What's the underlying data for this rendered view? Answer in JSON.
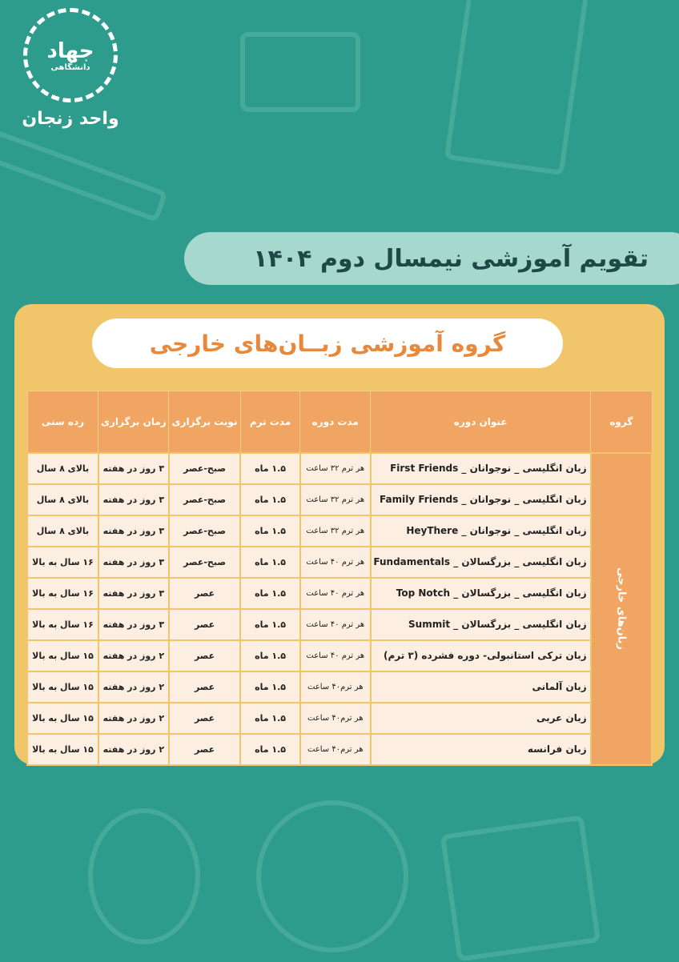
{
  "logo": {
    "name": "جهاد",
    "subtitle": "دانشگاهی",
    "unit": "واحد زنجان"
  },
  "title": "تقویم آموزشی نیمسال دوم ۱۴۰۴",
  "subtitle": "گروه آموزشی زبــان‌های خارجی",
  "table": {
    "headers": [
      "گروه",
      "عنوان دوره",
      "مدت دوره",
      "مدت ترم",
      "نوبت برگزاری",
      "زمان برگزاری",
      "رده سنی"
    ],
    "group": "زبان‌های خارجی",
    "rows": [
      [
        "زبان انگلیسی _ نوجوانان _ First Friends",
        "هر ترم ۳۲ ساعت",
        "۱.۵ ماه",
        "صبح-عصر",
        "۳ روز در هفته",
        "بالای ۸ سال"
      ],
      [
        "زبان انگلیسی _ نوجوانان _ Family Friends",
        "هر ترم ۳۲ ساعت",
        "۱.۵ ماه",
        "صبح-عصر",
        "۳ روز در هفته",
        "بالای ۸ سال"
      ],
      [
        "زبان انگلیسی _ نوجوانان _ HeyThere",
        "هر ترم ۳۲ ساعت",
        "۱.۵ ماه",
        "صبح-عصر",
        "۳ روز در هفته",
        "بالای ۸ سال"
      ],
      [
        "زبان انگلیسی _ بزرگسالان _ Fundamentals",
        "هر ترم ۴۰ ساعت",
        "۱.۵ ماه",
        "صبح-عصر",
        "۳ روز در هفته",
        "۱۶ سال به بالا"
      ],
      [
        "زبان انگلیسی _ بزرگسالان _ Top Notch",
        "هر ترم ۴۰ ساعت",
        "۱.۵ ماه",
        "عصر",
        "۳ روز در هفته",
        "۱۶ سال به بالا"
      ],
      [
        "زبان انگلیسی _ بزرگسالان _ Summit",
        "هر ترم ۴۰ ساعت",
        "۱.۵ ماه",
        "عصر",
        "۳ روز در هفته",
        "۱۶ سال به بالا"
      ],
      [
        "زبان ترکی استانبولی- دوره فشرده (۳ ترم)",
        "هر ترم ۴۰ ساعت",
        "۱.۵ ماه",
        "عصر",
        "۲ روز در هفته",
        "۱۵ سال به بالا"
      ],
      [
        "زبان آلمانی",
        "هر ترم۴۰ ساعت",
        "۱.۵ ماه",
        "عصر",
        "۲ روز در هفته",
        "۱۵ سال به بالا"
      ],
      [
        "زبان عربی",
        "هر ترم۴۰ ساعت",
        "۱.۵ ماه",
        "عصر",
        "۲ روز در هفته",
        "۱۵ سال به بالا"
      ],
      [
        "زبان فرانسه",
        "هر ترم۴۰ ساعت",
        "۱.۵ ماه",
        "عصر",
        "۲ روز در هفته",
        "۱۵ سال به بالا"
      ]
    ]
  },
  "colors": {
    "background": "#2e9c8c",
    "panel": "#f1c66b",
    "header": "#f0a562",
    "cell": "#fcefe1",
    "accent": "#e8883a"
  }
}
